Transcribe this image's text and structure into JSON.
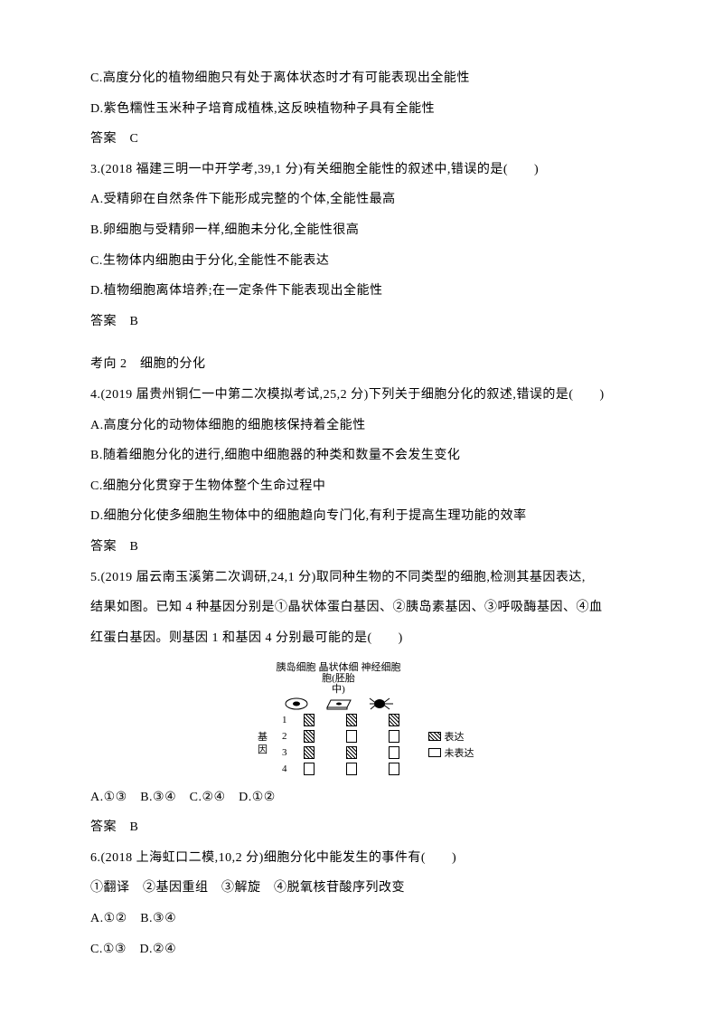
{
  "lines": {
    "opt_c1": "C.高度分化的植物细胞只有处于离体状态时才有可能表现出全能性",
    "opt_d1": "D.紫色糯性玉米种子培育成植株,这反映植物种子具有全能性",
    "ans1": "答案　C",
    "q3": "3.(2018 福建三明一中开学考,39,1 分)有关细胞全能性的叙述中,错误的是(　　)",
    "q3a": "A.受精卵在自然条件下能形成完整的个体,全能性最高",
    "q3b": "B.卵细胞与受精卵一样,细胞未分化,全能性很高",
    "q3c": "C.生物体内细胞由于分化,全能性不能表达",
    "q3d": "D.植物细胞离体培养;在一定条件下能表现出全能性",
    "ans3": "答案　B",
    "topic2": "考向 2　细胞的分化",
    "q4": "4.(2019 届贵州铜仁一中第二次模拟考试,25,2 分)下列关于细胞分化的叙述,错误的是(　　)",
    "q4a": "A.高度分化的动物体细胞的细胞核保持着全能性",
    "q4b": "B.随着细胞分化的进行,细胞中细胞器的种类和数量不会发生变化",
    "q4c": "C.细胞分化贯穿于生物体整个生命过程中",
    "q4d": "D.细胞分化使多细胞生物体中的细胞趋向专门化,有利于提高生理功能的效率",
    "ans4": "答案　B",
    "q5_1": "5.(2019 届云南玉溪第二次调研,24,1 分)取同种生物的不同类型的细胞,检测其基因表达,",
    "q5_2": "结果如图。已知 4 种基因分别是①晶状体蛋白基因、②胰岛素基因、③呼吸酶基因、④血",
    "q5_3": "红蛋白基因。则基因 1 和基因 4 分别最可能的是(　　)",
    "q5_opts": "A.①③　B.③④　C.②④　D.①②",
    "ans5": "答案　B",
    "q6": "6.(2018 上海虹口二模,10,2 分)细胞分化中能发生的事件有(　　)",
    "q6_items": "①翻译　②基因重组　③解旋　④脱氧核苷酸序列改变",
    "q6_ab": "A.①②　B.③④",
    "q6_cd": "C.①③　D.②④"
  },
  "figure": {
    "col_labels": [
      "胰岛细胞",
      "晶状体细\n胞(胚胎中)",
      "神经细胞"
    ],
    "y_label": "基\n因",
    "row_numbers": [
      "1",
      "2",
      "3",
      "4"
    ],
    "grid": [
      [
        1,
        1,
        1
      ],
      [
        1,
        0,
        0
      ],
      [
        1,
        1,
        0
      ],
      [
        0,
        0,
        0
      ]
    ],
    "legend_expr": "表达",
    "legend_unexpr": "未表达",
    "colors": {
      "background": "#ffffff",
      "stroke": "#000000",
      "text": "#000000"
    },
    "font_size_pt": 8
  }
}
